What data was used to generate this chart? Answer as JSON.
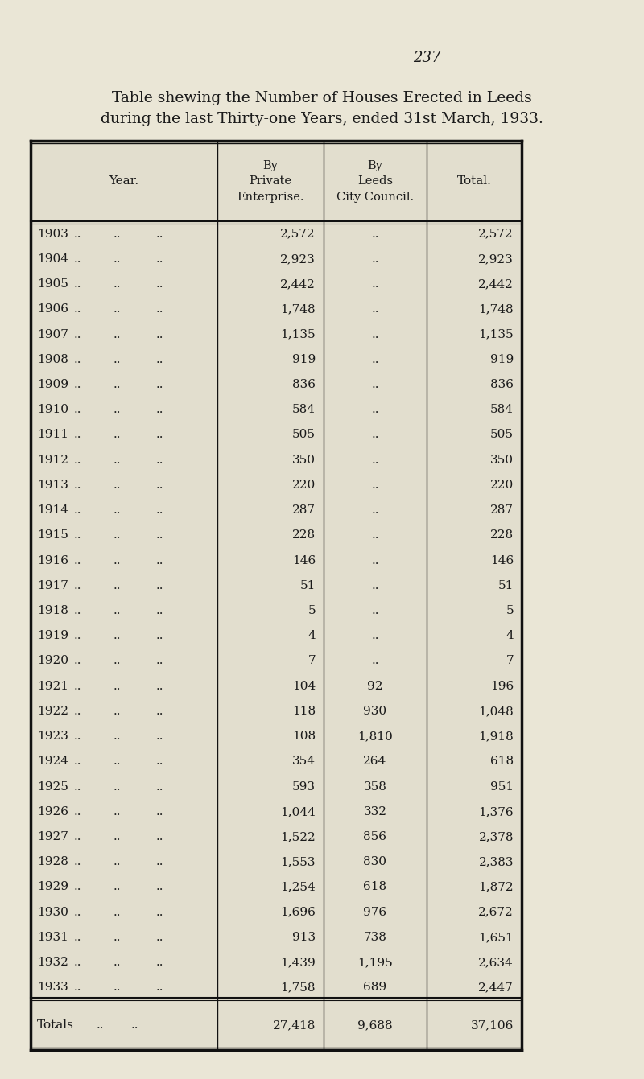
{
  "page_number": "237",
  "title_line1": "Table shewing the Number of Houses Erected in Leeds",
  "title_line2": "during the last Thirty-one Years, ended 31st March, 1933.",
  "col_headers": [
    "Year.",
    "By\nPrivate\nEnterprise.",
    "By\nLeeds\nCity Council.",
    "Total."
  ],
  "rows": [
    [
      "1903",
      "2,572",
      "..",
      "2,572"
    ],
    [
      "1904",
      "2,923",
      "..",
      "2,923"
    ],
    [
      "1905",
      "2,442",
      "..",
      "2,442"
    ],
    [
      "1906",
      "1,748",
      "..",
      "1,748"
    ],
    [
      "1907",
      "1,135",
      "..",
      "1,135"
    ],
    [
      "1908",
      "919",
      "..",
      "919"
    ],
    [
      "1909",
      "836",
      "..",
      "836"
    ],
    [
      "1910",
      "584",
      "..",
      "584"
    ],
    [
      "1911",
      "505",
      "..",
      "505"
    ],
    [
      "1912",
      "350",
      "..",
      "350"
    ],
    [
      "1913",
      "220",
      "..",
      "220"
    ],
    [
      "1914",
      "287",
      "..",
      "287"
    ],
    [
      "1915",
      "228",
      "..",
      "228"
    ],
    [
      "1916",
      "146",
      "..",
      "146"
    ],
    [
      "1917",
      "51",
      "..",
      "51"
    ],
    [
      "1918",
      "5",
      "..",
      "5"
    ],
    [
      "1919",
      "4",
      "..",
      "4"
    ],
    [
      "1920",
      "7",
      "..",
      "7"
    ],
    [
      "1921",
      "104",
      "92",
      "196"
    ],
    [
      "1922",
      "118",
      "930",
      "1,048"
    ],
    [
      "1923",
      "108",
      "1,810",
      "1,918"
    ],
    [
      "1924",
      "354",
      "264",
      "618"
    ],
    [
      "1925",
      "593",
      "358",
      "951"
    ],
    [
      "1926",
      "1,044",
      "332",
      "1,376"
    ],
    [
      "1927",
      "1,522",
      "856",
      "2,378"
    ],
    [
      "1928",
      "1,553",
      "830",
      "2,383"
    ],
    [
      "1929",
      "1,254",
      "618",
      "1,872"
    ],
    [
      "1930",
      "1,696",
      "976",
      "2,672"
    ],
    [
      "1931",
      "913",
      "738",
      "1,651"
    ],
    [
      "1932",
      "1,439",
      "1,195",
      "2,634"
    ],
    [
      "1933",
      "1,758",
      "689",
      "2,447"
    ]
  ],
  "totals_row": [
    "Totals",
    "27,418",
    "9,688",
    "37,106"
  ],
  "background_color": "#eae6d6",
  "table_bg": "#e2dece",
  "text_color": "#1a1a1a",
  "border_color": "#111111"
}
